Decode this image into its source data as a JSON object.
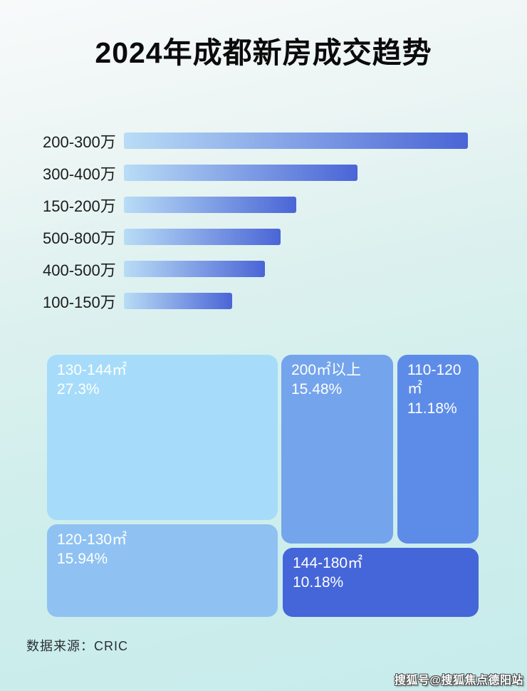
{
  "page": {
    "title": "2024年成都新房成交趋势",
    "source_note": "数据来源：CRIC",
    "watermark": "搜狐号@搜狐焦点德阳站"
  },
  "colors": {
    "background_top": "#f8fafa",
    "background_bottom": "#c7ecec",
    "title": "#0b0b0b",
    "bar_label": "#1c1c1c",
    "bar_gradient_start": "#b9dcf6",
    "bar_gradient_end": "#4a65d6",
    "block_text": "#ffffff"
  },
  "bar_chart": {
    "rows": [
      {
        "label": "200-300万",
        "length_pct": 100
      },
      {
        "label": "300-400万",
        "length_pct": 68
      },
      {
        "label": "150-200万",
        "length_pct": 50
      },
      {
        "label": "500-800万",
        "length_pct": 45.5
      },
      {
        "label": "400-500万",
        "length_pct": 41
      },
      {
        "label": "100-150万",
        "length_pct": 31.5
      }
    ]
  },
  "treemap": {
    "blocks": [
      {
        "label": "130-144㎡",
        "percent": "27.3%",
        "color": "#a6dcfa"
      },
      {
        "label": "120-130㎡",
        "percent": "15.94%",
        "color": "#8fc2f2"
      },
      {
        "label": "200㎡以上",
        "percent": "15.48%",
        "color": "#74a4ec"
      },
      {
        "label": "110-120㎡",
        "percent": "11.18%",
        "color": "#5d8ce8"
      },
      {
        "label": "144-180㎡",
        "percent": "10.18%",
        "color": "#4566d9"
      }
    ]
  },
  "chart_data": [
    {
      "type": "bar",
      "orientation": "horizontal",
      "title": "2024年成都新房成交趋势",
      "categories": [
        "200-300万",
        "300-400万",
        "150-200万",
        "500-800万",
        "400-500万",
        "100-150万"
      ],
      "values": [
        100,
        68,
        50,
        45.5,
        41,
        31.5
      ],
      "value_note": "no numeric axis shown; values are bar lengths as % of the longest bar",
      "xlabel": "",
      "ylabel": "",
      "grid": false,
      "legend": false,
      "bar_color_gradient": [
        "#b9dcf6",
        "#4a65d6"
      ]
    },
    {
      "type": "treemap",
      "title": "",
      "items": [
        {
          "label": "130-144㎡",
          "value": 27.3,
          "color": "#a6dcfa"
        },
        {
          "label": "120-130㎡",
          "value": 15.94,
          "color": "#8fc2f2"
        },
        {
          "label": "200㎡以上",
          "value": 15.48,
          "color": "#74a4ec"
        },
        {
          "label": "110-120㎡",
          "value": 11.18,
          "color": "#5d8ce8"
        },
        {
          "label": "144-180㎡",
          "value": 10.18,
          "color": "#4566d9"
        }
      ],
      "unit": "%"
    }
  ]
}
